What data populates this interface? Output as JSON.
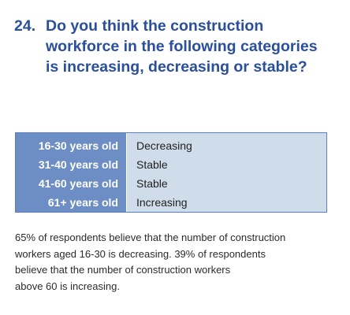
{
  "question": {
    "number": "24.",
    "lines": [
      "Do you think the construction",
      "workforce in the following categories",
      "is increasing, decreasing or stable?"
    ]
  },
  "table": {
    "rows": [
      {
        "category": "16-30 years old",
        "trend": "Decreasing"
      },
      {
        "category": "31-40 years old",
        "trend": "Stable"
      },
      {
        "category": "41-60 years old",
        "trend": "Stable"
      },
      {
        "category": "61+ years old",
        "trend": "Increasing"
      }
    ]
  },
  "summary": {
    "lines": [
      "65% of respondents believe that the number of construction",
      "workers aged 16-30 is decreasing. 39% of respondents",
      "believe that the number of construction workers",
      "above 60 is increasing."
    ]
  },
  "colors": {
    "heading": "#2a4f9c",
    "category_bg": "#6d8ec4",
    "trend_bg": "#cfdce9"
  }
}
